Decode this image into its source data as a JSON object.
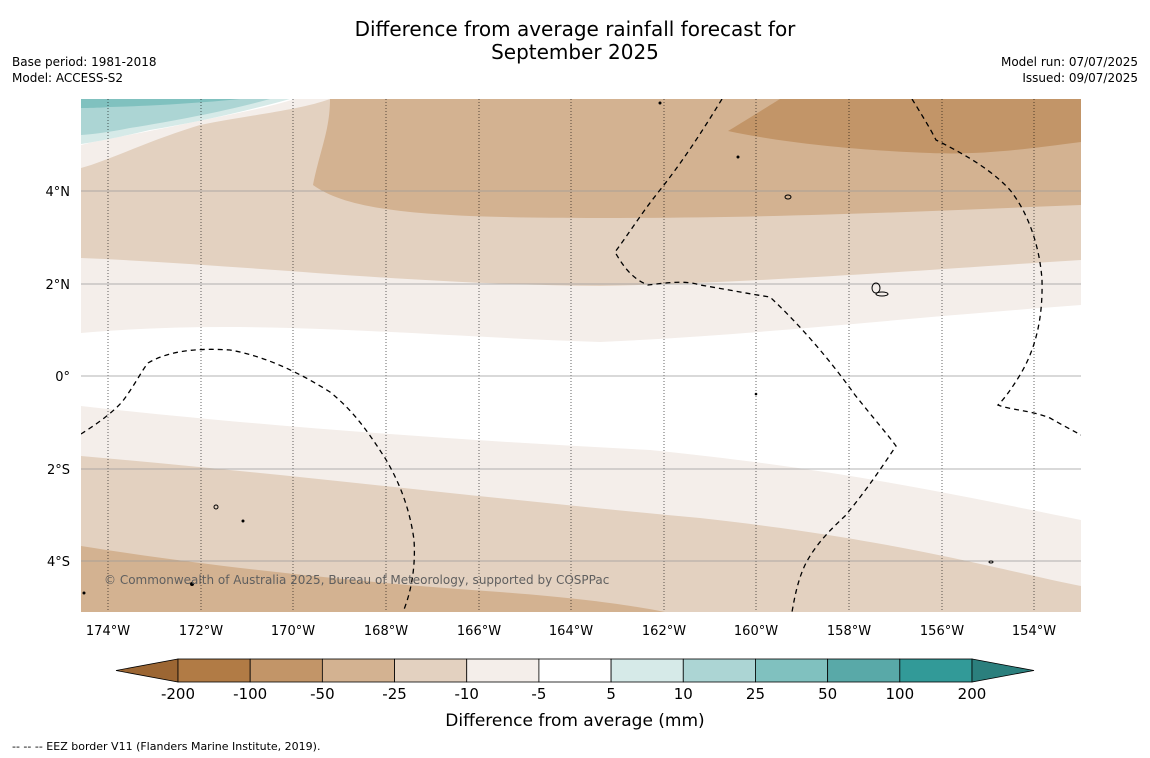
{
  "title_line1": "Difference from average rainfall forecast for",
  "title_line2": "September 2025",
  "meta_left": [
    "Base period: 1981-2018",
    "Model: ACCESS-S2"
  ],
  "meta_right": [
    "Model run: 07/07/2025",
    "Issued: 09/07/2025"
  ],
  "map": {
    "lon_ticks": [
      "174°W",
      "172°W",
      "170°W",
      "168°W",
      "166°W",
      "164°W",
      "162°W",
      "160°W",
      "158°W",
      "156°W",
      "154°W"
    ],
    "lat_ticks": [
      "4°N",
      "2°N",
      "0°",
      "2°S",
      "4°S"
    ],
    "attribution": "© Commonwealth of Australia 2025, Bureau of Meteorology, supported by COSPPac"
  },
  "colorbar": {
    "title": "Difference from average (mm)",
    "tick_labels": [
      "-200",
      "-100",
      "-50",
      "-25",
      "-10",
      "-5",
      "5",
      "10",
      "25",
      "50",
      "100",
      "200"
    ],
    "colors": [
      "#9c6633",
      "#b17b45",
      "#c29568",
      "#d3b291",
      "#e3d1c0",
      "#f4eeea",
      "#ffffff",
      "#d6eae8",
      "#acd5d4",
      "#80c1bf",
      "#59a9a8",
      "#329a98",
      "#2b7f7d"
    ]
  },
  "legend_note": "--  --  -- EEZ border V11 (Flanders Marine Institute, 2019)."
}
